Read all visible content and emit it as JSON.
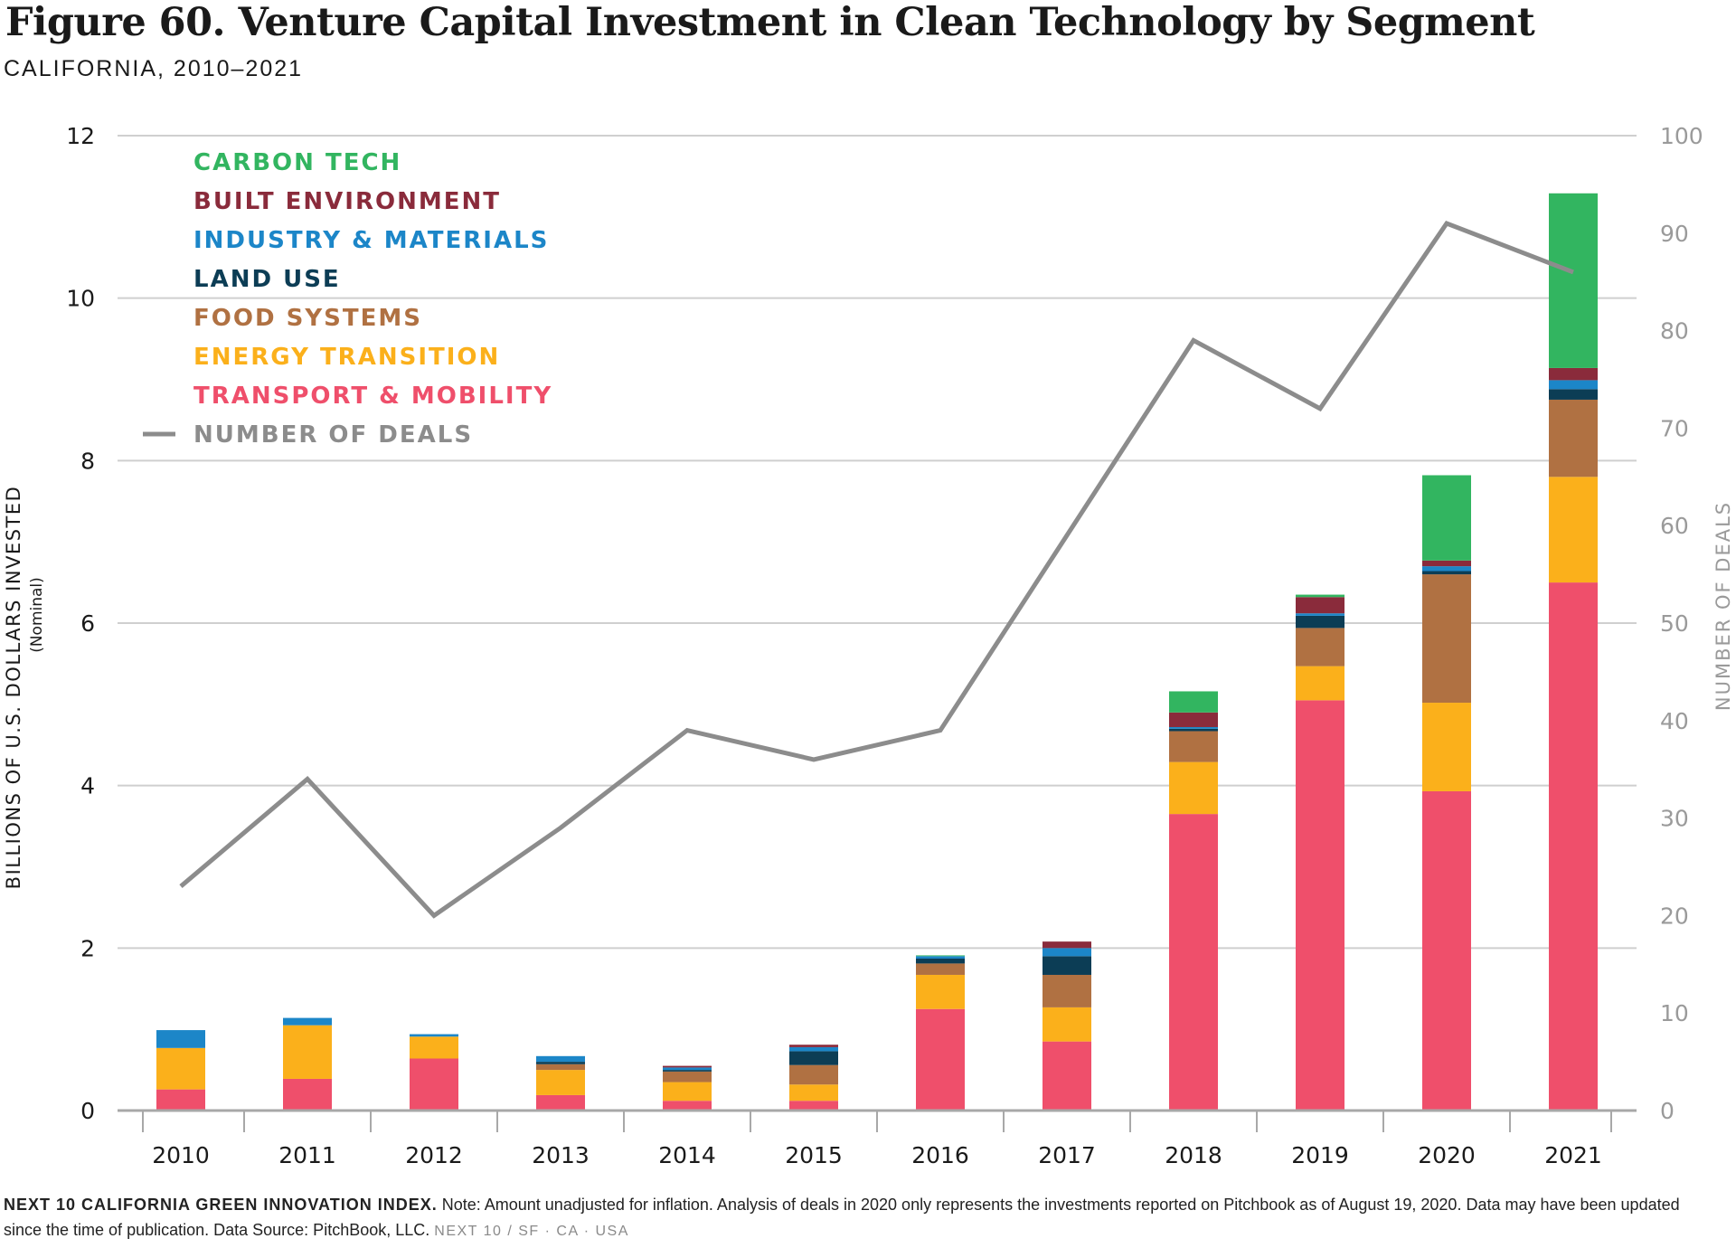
{
  "title": "Figure 60. Venture Capital Investment in Clean Technology by Segment",
  "subtitle": "CALIFORNIA, 2010–2021",
  "footnote": {
    "source_label": "NEXT 10 CALIFORNIA GREEN INNOVATION INDEX.",
    "note": "Note: Amount unadjusted for inflation. Analysis of deals in 2020 only represents the investments reported on Pitchbook as of August 19, 2020. Data may have been updated since the time of publication. Data Source: PitchBook, LLC.",
    "credit": "NEXT 10  /  SF · CA · USA"
  },
  "chart_data": {
    "type": "bar",
    "stacked": true,
    "categories": [
      "2010",
      "2011",
      "2012",
      "2013",
      "2014",
      "2015",
      "2016",
      "2017",
      "2018",
      "2019",
      "2020",
      "2021"
    ],
    "ylabel": "BILLIONS OF U.S. DOLLARS INVESTED",
    "ylabel_sub": "(Nominal)",
    "ylim": [
      0,
      12
    ],
    "yticks": [
      0,
      2,
      4,
      6,
      8,
      10,
      12
    ],
    "y2label": "NUMBER OF DEALS",
    "y2lim": [
      0,
      100
    ],
    "y2ticks": [
      0,
      10,
      20,
      30,
      40,
      50,
      60,
      70,
      80,
      90,
      100
    ],
    "grid": true,
    "legend_position": "top-left",
    "series": [
      {
        "name": "TRANSPORT & MOBILITY",
        "color": "#EF4F6B",
        "values": [
          0.26,
          0.39,
          0.64,
          0.19,
          0.12,
          0.12,
          1.25,
          0.85,
          3.65,
          5.05,
          3.93,
          6.5
        ]
      },
      {
        "name": "ENERGY TRANSITION",
        "color": "#FBB01B",
        "values": [
          0.51,
          0.66,
          0.27,
          0.31,
          0.23,
          0.2,
          0.42,
          0.42,
          0.64,
          0.42,
          1.09,
          1.3
        ]
      },
      {
        "name": "FOOD SYSTEMS",
        "color": "#B07142",
        "values": [
          0,
          0,
          0,
          0.07,
          0.13,
          0.24,
          0.14,
          0.4,
          0.38,
          0.47,
          1.58,
          0.95
        ]
      },
      {
        "name": "LAND USE",
        "color": "#0C3D55",
        "values": [
          0,
          0,
          0,
          0.03,
          0.02,
          0.17,
          0.06,
          0.23,
          0.03,
          0.15,
          0.04,
          0.13
        ]
      },
      {
        "name": "INDUSTRY & MATERIALS",
        "color": "#1C86C8",
        "values": [
          0.22,
          0.09,
          0.03,
          0.07,
          0.03,
          0.05,
          0.03,
          0.1,
          0.02,
          0.03,
          0.06,
          0.11
        ]
      },
      {
        "name": "BUILT ENVIRONMENT",
        "color": "#8A2B3B",
        "values": [
          0,
          0,
          0,
          0,
          0.02,
          0.03,
          0,
          0.08,
          0.18,
          0.2,
          0.07,
          0.15
        ]
      },
      {
        "name": "CARBON TECH",
        "color": "#32B560",
        "values": [
          0,
          0,
          0,
          0,
          0,
          0,
          0.01,
          0,
          0.26,
          0.03,
          1.05,
          2.15
        ]
      }
    ],
    "line_series": {
      "name": "NUMBER OF DEALS",
      "color": "#8C8C8C",
      "axis": "right",
      "values": [
        23,
        34,
        20,
        29,
        39,
        36,
        39,
        59,
        79,
        72,
        91,
        86
      ]
    }
  }
}
